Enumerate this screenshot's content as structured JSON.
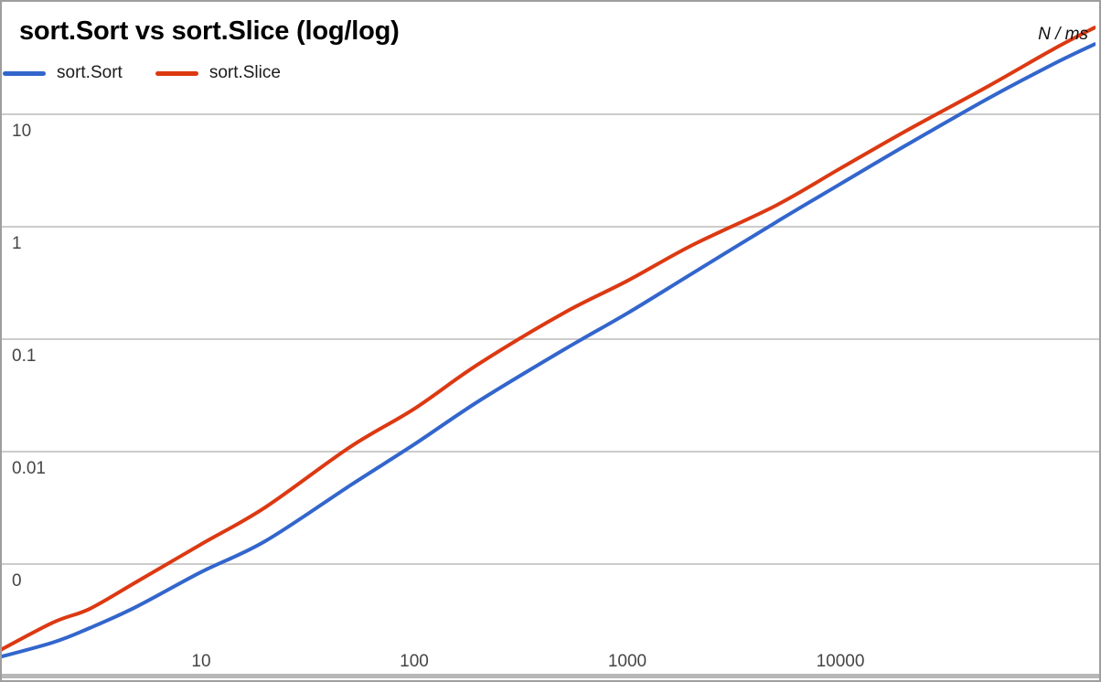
{
  "chart_data": {
    "type": "line",
    "title": "sort.Sort vs sort.Slice (log/log)",
    "corner_label": "N / ms",
    "xlabel": "N",
    "ylabel": "ms",
    "x_scale": "log",
    "y_scale": "log",
    "grid": "horizontal-only",
    "legend_position": "top-left",
    "x_ticks": [
      10,
      100,
      1000,
      10000
    ],
    "x_tick_labels": [
      "10",
      "100",
      "1000",
      "10000"
    ],
    "y_ticks": [
      {
        "value": 10,
        "label": "10"
      },
      {
        "value": 1,
        "label": "1"
      },
      {
        "value": 0.1,
        "label": "0.1"
      },
      {
        "value": 0.01,
        "label": "0.01"
      },
      {
        "value": 0.001,
        "label": "0"
      }
    ],
    "x_range": [
      1,
      160000
    ],
    "y_range": [
      0.0001,
      100
    ],
    "x": [
      1,
      2,
      3,
      5,
      10,
      20,
      50,
      100,
      200,
      500,
      1000,
      2000,
      5000,
      10000,
      20000,
      50000,
      100000,
      156000
    ],
    "series": [
      {
        "name": "sort.Sort",
        "color": "#3366cc",
        "values": [
          0.00014,
          0.0002,
          0.00027,
          0.00042,
          0.00085,
          0.0016,
          0.005,
          0.0116,
          0.028,
          0.08,
          0.17,
          0.38,
          1.1,
          2.4,
          5.2,
          14,
          28,
          42
        ]
      },
      {
        "name": "sort.Slice",
        "color": "#dc3912",
        "values": [
          0.00015,
          0.0003,
          0.0004,
          0.0007,
          0.0015,
          0.0032,
          0.011,
          0.024,
          0.06,
          0.17,
          0.33,
          0.68,
          1.55,
          3.3,
          7,
          18,
          38,
          59
        ]
      }
    ],
    "colors": {
      "gridline": "#cccccc",
      "axis_line": "#b7b7b7",
      "tick_label": "#454545",
      "title": "#000000",
      "border": "#9e9e9e"
    }
  }
}
